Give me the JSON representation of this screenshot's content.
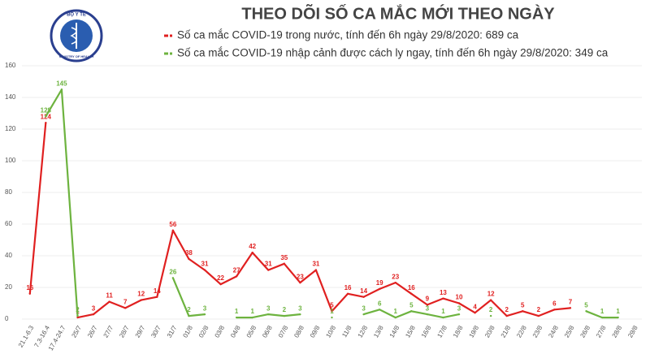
{
  "logo": {
    "name": "BỘ Y TẾ",
    "subtitle": "MINISTRY OF HEALTH"
  },
  "chart_data": {
    "type": "line",
    "title": "THEO DÕI SỐ CA MẮC MỚI THEO NGÀY",
    "categories": [
      "21.1-6.3",
      "7.3-16.4",
      "17.4-24.7",
      "25/7",
      "26/7",
      "27/7",
      "28/7",
      "29/7",
      "30/7",
      "31/7",
      "01/8",
      "02/8",
      "03/8",
      "04/8",
      "05/8",
      "06/8",
      "07/8",
      "08/8",
      "09/8",
      "10/8",
      "11/8",
      "12/8",
      "13/8",
      "14/8",
      "15/8",
      "16/8",
      "17/8",
      "18/8",
      "19/8",
      "20/8",
      "21/8",
      "22/8",
      "23/8",
      "24/8",
      "25/8",
      "26/8",
      "27/8",
      "28/8",
      "29/8"
    ],
    "series": [
      {
        "name": "Số ca mắc COVID-19 trong nước, tính đến 6h ngày 29/8/2020: 689 ca",
        "color": "#e02020",
        "values": [
          16,
          124,
          null,
          1,
          3,
          11,
          7,
          12,
          14,
          56,
          38,
          31,
          22,
          27,
          42,
          31,
          35,
          23,
          31,
          5,
          16,
          14,
          19,
          23,
          16,
          9,
          13,
          10,
          4,
          12,
          2,
          5,
          2,
          6,
          7,
          null,
          null,
          null,
          null
        ]
      },
      {
        "name": "Số ca mắc COVID-19 nhập cảnh được cách ly ngay, tính đến 6h ngày 29/8/2020: 349 ca",
        "color": "#6db33f",
        "values": [
          null,
          128,
          145,
          2,
          null,
          null,
          null,
          null,
          null,
          26,
          2,
          3,
          null,
          1,
          1,
          3,
          2,
          3,
          null,
          1,
          null,
          3,
          6,
          1,
          5,
          3,
          1,
          3,
          null,
          2,
          null,
          null,
          null,
          null,
          null,
          5,
          1,
          1,
          null
        ]
      }
    ],
    "ylim": [
      0,
      160
    ],
    "yticks": [
      0,
      20,
      40,
      60,
      80,
      100,
      120,
      140,
      160
    ],
    "grid": true
  }
}
